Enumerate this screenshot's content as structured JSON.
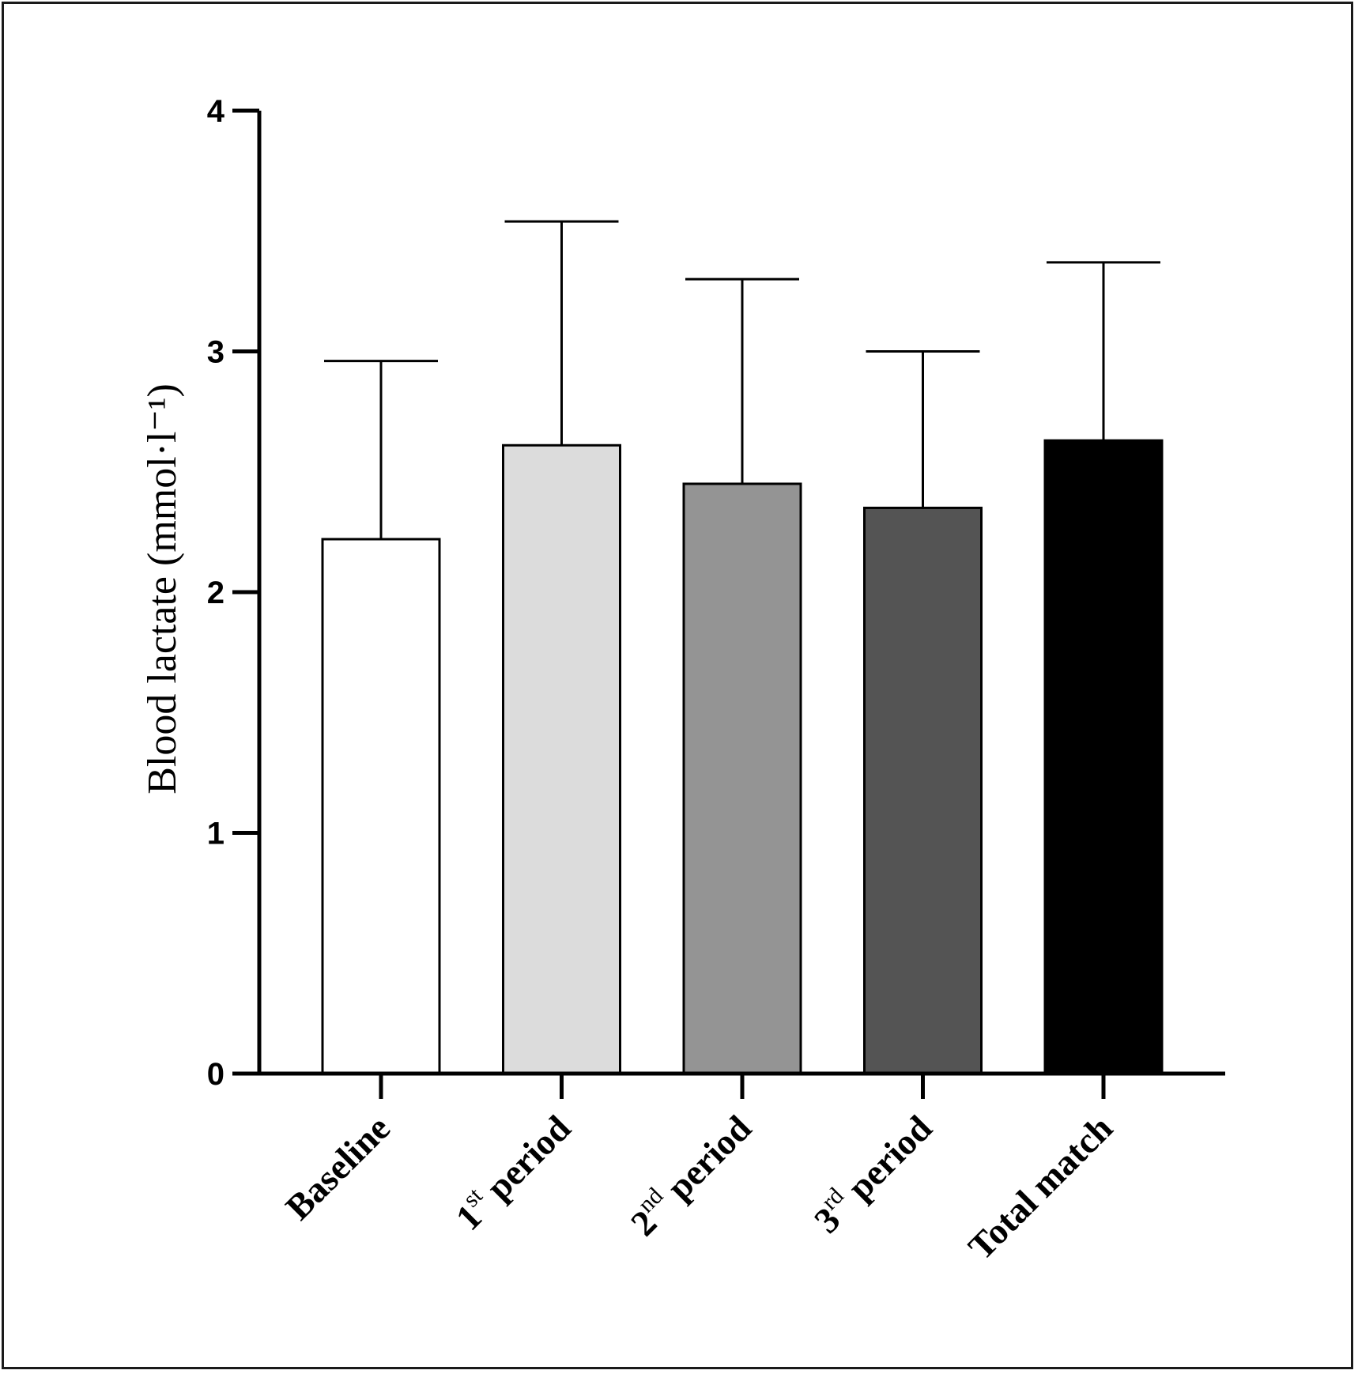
{
  "chart_data": {
    "type": "bar",
    "title": "",
    "xlabel": "",
    "ylabel": "Blood lactate (mmol·l⁻¹)",
    "ylim": [
      0,
      4
    ],
    "yticks": [
      0,
      1,
      2,
      3,
      4
    ],
    "grid": false,
    "categories": [
      {
        "pre": "Baseline",
        "sup": "",
        "post": ""
      },
      {
        "pre": "1",
        "sup": "st",
        "post": "  period"
      },
      {
        "pre": "2",
        "sup": "nd",
        "post": "  period"
      },
      {
        "pre": "3",
        "sup": "rd",
        "post": "  period"
      },
      {
        "pre": "Total match",
        "sup": "",
        "post": ""
      }
    ],
    "values": [
      2.22,
      2.61,
      2.45,
      2.35,
      2.63
    ],
    "error_upper": [
      2.96,
      3.54,
      3.3,
      3.0,
      3.37
    ],
    "colors": [
      "#ffffff",
      "#dcdcdc",
      "#949494",
      "#545454",
      "#000000"
    ]
  }
}
